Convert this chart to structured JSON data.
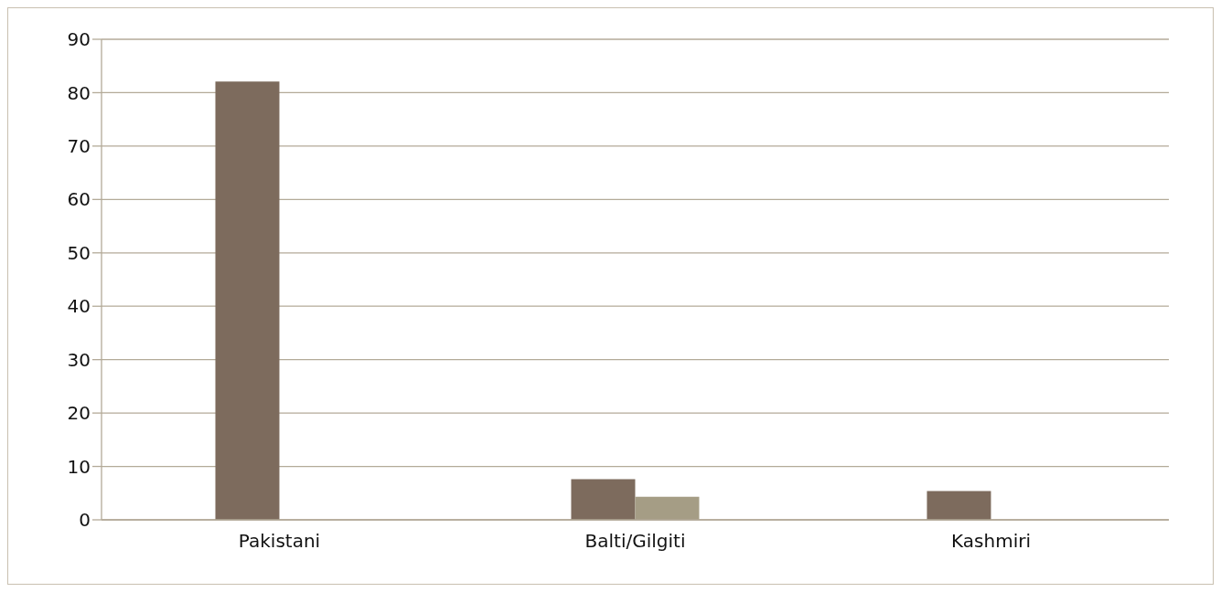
{
  "chart_data": {
    "type": "bar",
    "categories": [
      "Pakistani",
      "Balti/Gilgiti",
      "Kashmiri"
    ],
    "series": [
      {
        "color": "#7d6b5d",
        "values": [
          82.1,
          7.6,
          5.4
        ]
      },
      {
        "color": "#a59d85",
        "values": [
          null,
          4.3,
          null
        ]
      }
    ],
    "ylim": [
      0,
      90
    ],
    "yticks": [
      0,
      10,
      20,
      30,
      40,
      50,
      60,
      70,
      80,
      90
    ],
    "grid": "y"
  }
}
